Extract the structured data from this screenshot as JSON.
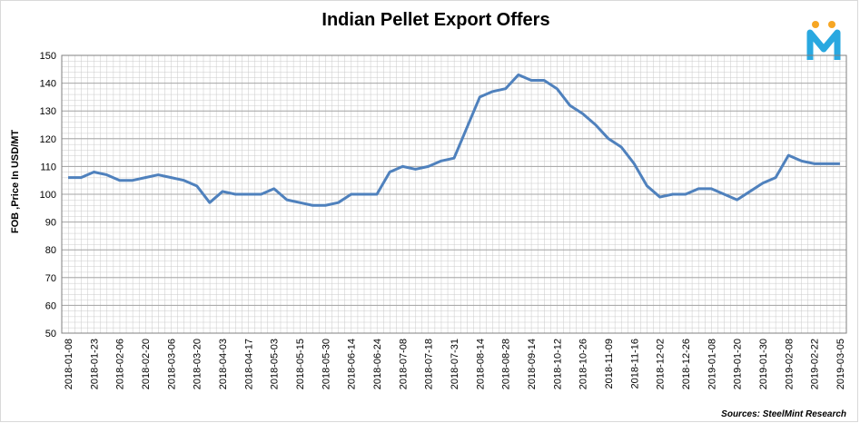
{
  "chart_data": {
    "type": "line",
    "title": "Indian Pellet Export Offers",
    "y_label": "FOB ,Price In USD/MT",
    "source": "Sources: SteelMint Research",
    "categories": [
      "2018-01-08",
      null,
      "2018-01-23",
      null,
      "2018-02-06",
      null,
      "2018-02-20",
      null,
      "2018-03-06",
      null,
      "2018-03-20",
      null,
      "2018-04-03",
      null,
      "2018-04-17",
      null,
      "2018-05-03",
      null,
      "2018-05-15",
      null,
      "2018-05-30",
      null,
      "2018-06-14",
      null,
      "2018-06-24",
      null,
      "2018-07-08",
      null,
      "2018-07-18",
      null,
      "2018-07-31",
      null,
      "2018-08-14",
      null,
      "2018-08-28",
      null,
      "2018-09-14",
      null,
      "2018-10-12",
      null,
      "2018-10-26",
      null,
      "2018-11-09",
      null,
      "2018-11-16",
      null,
      "2018-12-02",
      null,
      "2018-12-26",
      null,
      "2019-01-08",
      null,
      "2019-01-20",
      null,
      "2019-01-30",
      null,
      "2019-02-08",
      null,
      "2019-02-22",
      null,
      "2019-03-05"
    ],
    "series": [
      {
        "name": "FOB Price",
        "color": "#4f81bd",
        "values": [
          106,
          106,
          108,
          107,
          105,
          105,
          106,
          107,
          106,
          105,
          103,
          97,
          101,
          100,
          100,
          100,
          102,
          98,
          97,
          96,
          96,
          97,
          100,
          100,
          100,
          108,
          110,
          109,
          110,
          112,
          113,
          124,
          135,
          137,
          138,
          143,
          141,
          141,
          138,
          132,
          129,
          125,
          120,
          117,
          111,
          103,
          99,
          100,
          100,
          102,
          102,
          100,
          98,
          101,
          104,
          106,
          114,
          112,
          111,
          111,
          111
        ]
      }
    ],
    "ylim": [
      50,
      150
    ],
    "yticks": [
      50,
      60,
      70,
      80,
      90,
      100,
      110,
      120,
      130,
      140,
      150
    ],
    "grid": true
  }
}
